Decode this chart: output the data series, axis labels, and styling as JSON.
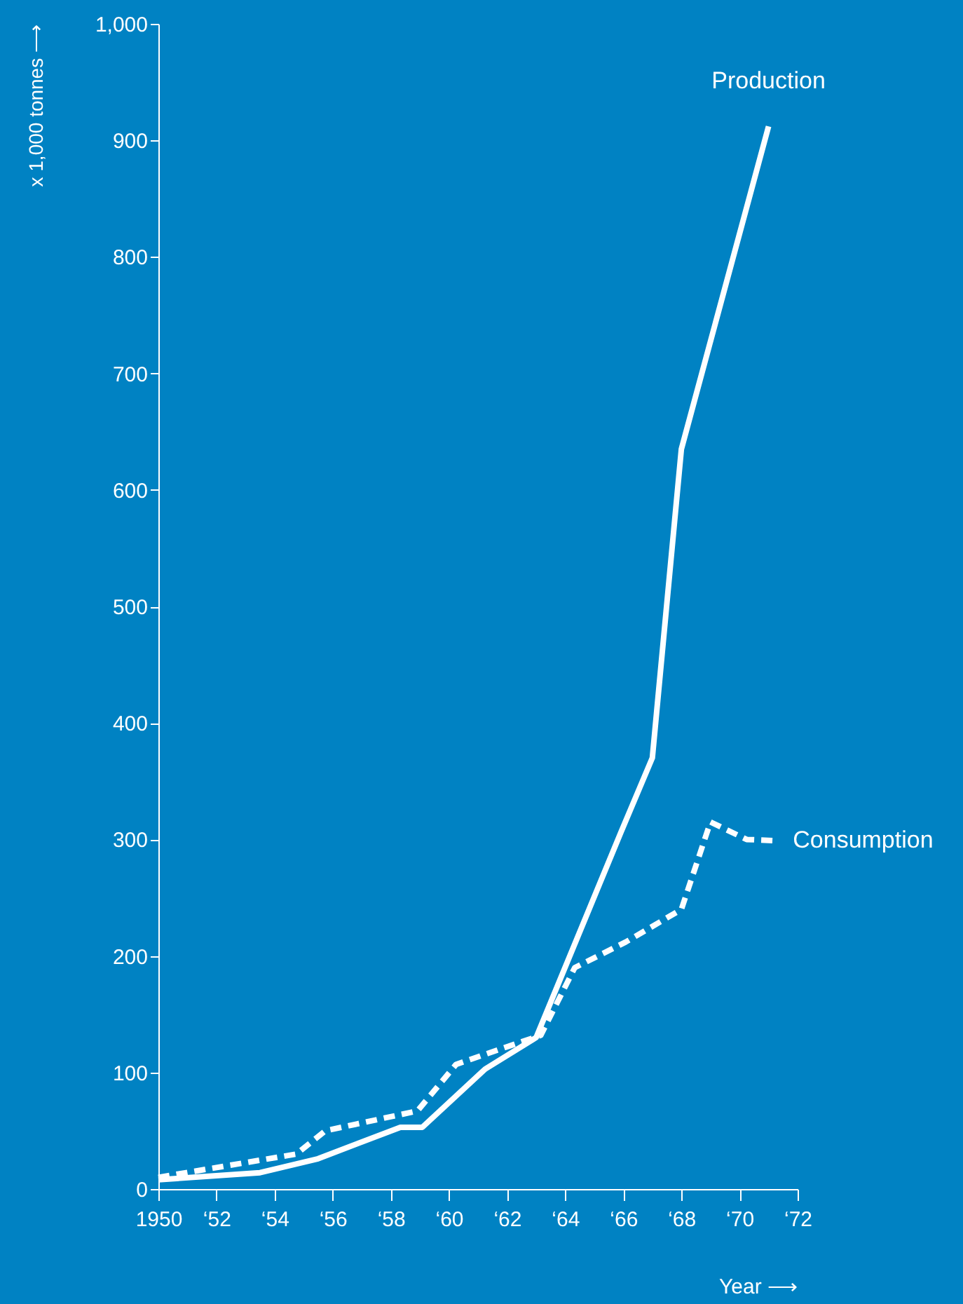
{
  "chart_data": {
    "type": "line",
    "xlabel": "Year ⟶",
    "ylabel": "x 1,000 tonnes ⟶",
    "xlim": [
      "1950",
      "1972"
    ],
    "xticks": [
      {
        "value": "1950",
        "label": "1950"
      },
      {
        "value": "1952",
        "label": "‘52"
      },
      {
        "value": "1954",
        "label": "‘54"
      },
      {
        "value": "1956",
        "label": "‘56"
      },
      {
        "value": "1958",
        "label": "‘58"
      },
      {
        "value": "1960",
        "label": "‘60"
      },
      {
        "value": "1962",
        "label": "‘62"
      },
      {
        "value": "1964",
        "label": "‘64"
      },
      {
        "value": "1966",
        "label": "‘66"
      },
      {
        "value": "1968",
        "label": "‘68"
      },
      {
        "value": "1970",
        "label": "‘70"
      },
      {
        "value": "1972",
        "label": "‘72"
      }
    ],
    "ylim": [
      0,
      1000
    ],
    "yticks": [
      0,
      100,
      200,
      300,
      400,
      500,
      600,
      700,
      800,
      900,
      {
        "value": 1000,
        "label": "1,000"
      }
    ],
    "grid": false,
    "marker": "none",
    "series": [
      {
        "name": "Production",
        "color": "#ffffff",
        "line_style": "solid",
        "x": [
          "1950-01",
          "1953-07",
          "1955-07",
          "1958-05",
          "1959-02",
          "1961-04",
          "1963-01",
          "1965-12",
          "1967-01",
          "1968-01",
          "1971-01"
        ],
        "values": [
          8,
          14,
          26,
          53,
          53,
          103,
          130,
          306,
          370,
          635,
          912
        ]
      },
      {
        "name": "Consumption",
        "color": "#ffffff",
        "line_style": "dashed",
        "x": [
          "1950-01",
          "1954-10",
          "1955-10",
          "1958-12",
          "1960-04",
          "1963-03",
          "1964-05",
          "1966-02",
          "1968-01",
          "1969-01",
          "1970-04",
          "1971-03"
        ],
        "values": [
          10,
          30,
          50,
          67,
          107,
          132,
          190,
          212,
          240,
          315,
          300,
          299
        ]
      }
    ]
  }
}
